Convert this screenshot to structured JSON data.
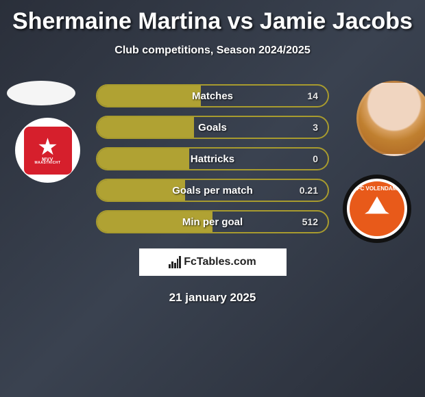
{
  "title": "Shermaine Martina vs Jamie Jacobs",
  "subtitle": "Club competitions, Season 2024/2025",
  "date": "21 january 2025",
  "brand": "FcTables.com",
  "colors": {
    "bar_border": "#a89b2e",
    "bar_fill": "#b0a233"
  },
  "stats": [
    {
      "label": "Matches",
      "value": "14",
      "fill_pct": 45
    },
    {
      "label": "Goals",
      "value": "3",
      "fill_pct": 42
    },
    {
      "label": "Hattricks",
      "value": "0",
      "fill_pct": 40
    },
    {
      "label": "Goals per match",
      "value": "0.21",
      "fill_pct": 38
    },
    {
      "label": "Min per goal",
      "value": "512",
      "fill_pct": 50
    }
  ],
  "left_club": {
    "name": "MVV",
    "sub": "MAASTRICHT"
  },
  "right_club": {
    "name": "FC VOLENDAM"
  }
}
